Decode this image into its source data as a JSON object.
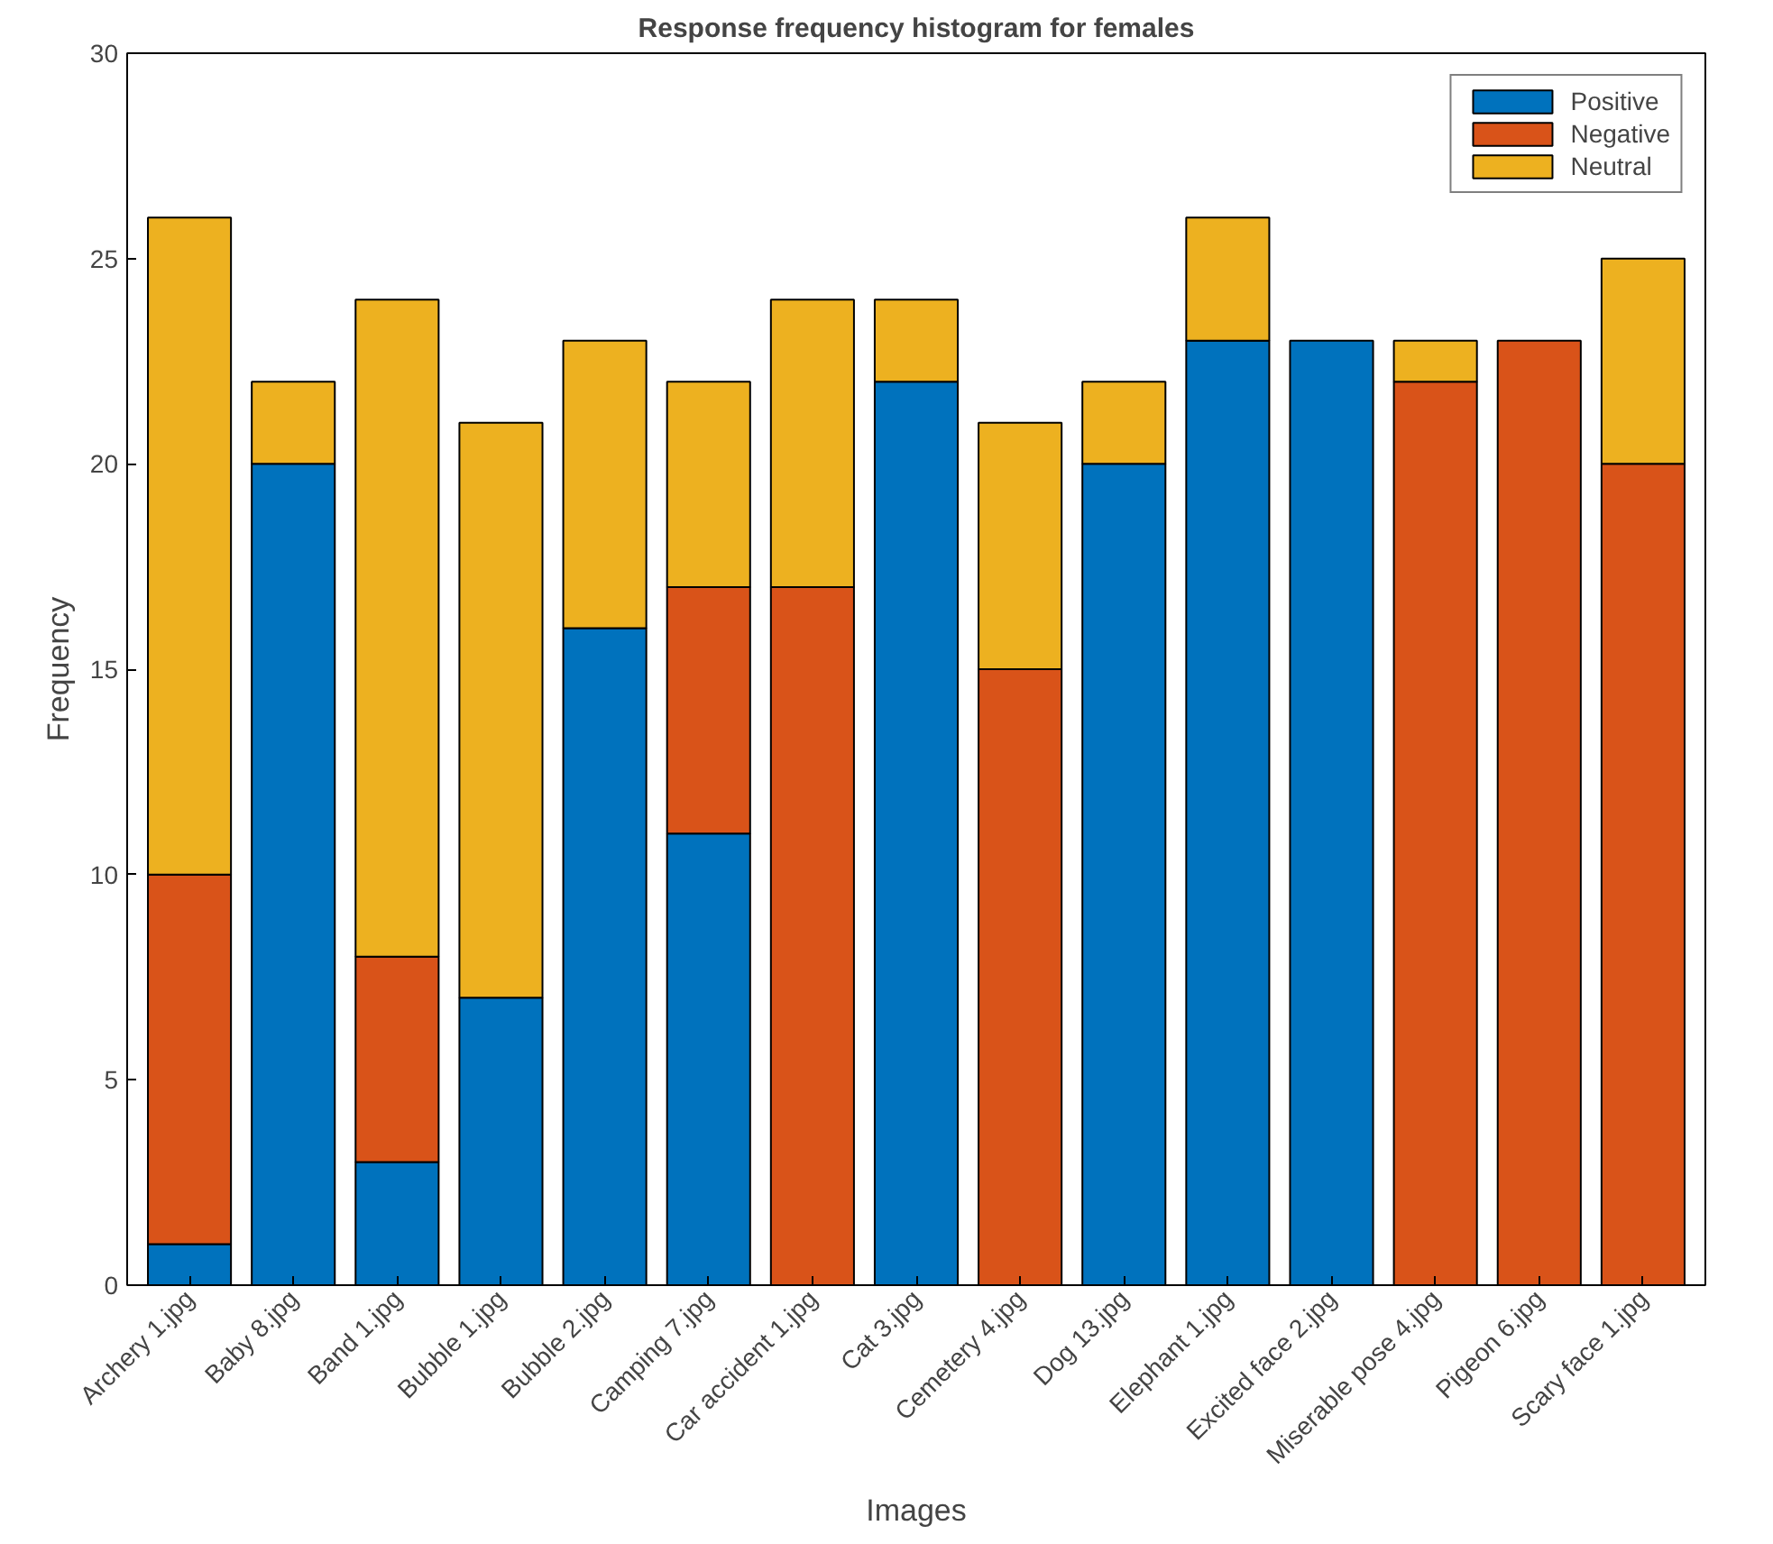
{
  "chart_data": {
    "type": "bar",
    "title": "Response frequency histogram for females",
    "xlabel": "Images",
    "ylabel": "Frequency",
    "categories": [
      "Archery 1.jpg",
      "Baby 8.jpg",
      "Band 1.jpg",
      "Bubble 1.jpg",
      "Bubble 2.jpg",
      "Camping 7.jpg",
      "Car accident 1.jpg",
      "Cat 3.jpg",
      "Cemetery 4.jpg",
      "Dog 13.jpg",
      "Elephant 1.jpg",
      "Excited face 2.jpg",
      "Miserable pose 4.jpg",
      "Pigeon 6.jpg",
      "Scary face 1.jpg"
    ],
    "stacked": true,
    "series": [
      {
        "name": "Positive",
        "color": "#0072bd",
        "values": [
          1,
          20,
          3,
          7,
          16,
          11,
          0,
          22,
          0,
          20,
          23,
          23,
          0,
          0,
          0
        ]
      },
      {
        "name": "Negative",
        "color": "#d95319",
        "values": [
          9,
          0,
          5,
          0,
          0,
          6,
          17,
          0,
          15,
          0,
          0,
          0,
          22,
          23,
          20
        ]
      },
      {
        "name": "Neutral",
        "color": "#edb120",
        "values": [
          16,
          2,
          16,
          14,
          7,
          5,
          7,
          2,
          6,
          2,
          3,
          0,
          1,
          0,
          5
        ]
      }
    ],
    "ylim": [
      0,
      30
    ],
    "yticks": [
      0,
      5,
      10,
      15,
      20,
      25,
      30
    ],
    "grid": false,
    "legend": "top right"
  }
}
